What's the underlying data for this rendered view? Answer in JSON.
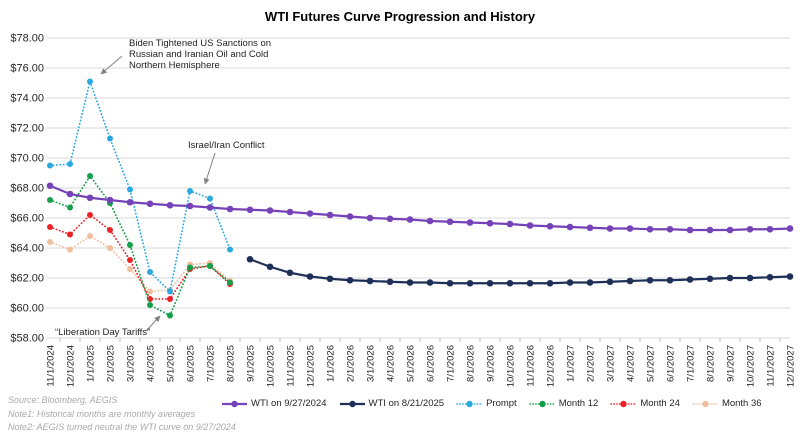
{
  "title": "WTI Futures Curve Progression and History",
  "notes": {
    "source": "Source: Bloomberg, AEGIS",
    "note1": "Note1: Historical months are monthly averages",
    "note2": "Note2: AEGIS turned neutral the WTI curve on 9/27/2024"
  },
  "annotations": {
    "biden_sanctions": "Biden Tightened US Sanctions on\nRussian and Iranian Oil and Cold\nNorthern Hemisphere",
    "israel_iran": "Israel/Iran Conflict",
    "liberation_tariffs": "“Liberation Day Tariffs”"
  },
  "colors": {
    "wti_9_27_2024": "#7642b8",
    "wti_8_21_2025": "#1f3058",
    "prompt": "#2ba8e0",
    "month12": "#13a04a",
    "month24": "#ec2227",
    "month36": "#f0bf9f",
    "gridline": "#d9d9d9",
    "axis_text": "#262626",
    "arrow": "#808080"
  },
  "chart_data": {
    "type": "line",
    "title": "WTI Futures Curve Progression and History",
    "grid": "horizontal",
    "legend_position": "bottom",
    "y_axis": {
      "min": 58,
      "max": 78,
      "step": 2,
      "tick_format": "$#.00"
    },
    "y_tick_labels": [
      "$58.00",
      "$60.00",
      "$62.00",
      "$64.00",
      "$66.00",
      "$68.00",
      "$70.00",
      "$72.00",
      "$74.00",
      "$76.00",
      "$78.00"
    ],
    "x_labels": [
      "11/1/2024",
      "12/1/2024",
      "1/1/2025",
      "2/1/2025",
      "3/1/2025",
      "4/1/2025",
      "5/1/2025",
      "6/1/2025",
      "7/1/2025",
      "8/1/2025",
      "9/1/2025",
      "10/1/2025",
      "11/1/2025",
      "12/1/2025",
      "1/1/2026",
      "2/1/2026",
      "3/1/2026",
      "4/1/2026",
      "5/1/2026",
      "6/1/2026",
      "7/1/2026",
      "8/1/2026",
      "9/1/2026",
      "10/1/2026",
      "11/1/2026",
      "12/1/2026",
      "1/1/2027",
      "2/1/2027",
      "3/1/2027",
      "4/1/2027",
      "5/1/2027",
      "6/1/2027",
      "7/1/2027",
      "8/1/2027",
      "9/1/2027",
      "10/1/2027",
      "11/1/2027",
      "12/1/2027"
    ],
    "series": [
      {
        "name": "Month 36",
        "color_key": "month36",
        "style": "dotted",
        "start": 0,
        "values": [
          64.4,
          63.9,
          64.8,
          64.0,
          62.6,
          61.1,
          61.2,
          62.9,
          63.0,
          61.8
        ]
      },
      {
        "name": "Month 24",
        "color_key": "month24",
        "style": "dotted",
        "start": 0,
        "values": [
          65.4,
          64.9,
          66.2,
          65.2,
          63.2,
          60.6,
          60.6,
          62.6,
          62.8,
          61.6
        ]
      },
      {
        "name": "Month 12",
        "color_key": "month12",
        "style": "dotted",
        "start": 0,
        "values": [
          67.2,
          66.7,
          68.8,
          67.0,
          64.2,
          60.2,
          59.5,
          62.7,
          62.8,
          61.7
        ]
      },
      {
        "name": "Prompt",
        "color_key": "prompt",
        "style": "dotted",
        "start": 0,
        "values": [
          69.5,
          69.6,
          75.1,
          71.3,
          67.9,
          62.4,
          61.1,
          67.8,
          67.3,
          63.9
        ]
      },
      {
        "name": "WTI on 9/27/2024",
        "color_key": "wti_9_27_2024",
        "style": "solid",
        "start": 0,
        "values": [
          68.15,
          67.6,
          67.35,
          67.2,
          67.05,
          66.95,
          66.85,
          66.8,
          66.7,
          66.6,
          66.55,
          66.5,
          66.4,
          66.3,
          66.2,
          66.1,
          66.0,
          65.95,
          65.9,
          65.8,
          65.75,
          65.7,
          65.65,
          65.6,
          65.5,
          65.45,
          65.4,
          65.35,
          65.3,
          65.3,
          65.25,
          65.25,
          65.2,
          65.2,
          65.2,
          65.25,
          65.25,
          65.3
        ]
      },
      {
        "name": "WTI on 8/21/2025",
        "color_key": "wti_8_21_2025",
        "style": "solid",
        "start": 10,
        "values": [
          63.25,
          62.75,
          62.35,
          62.1,
          61.95,
          61.85,
          61.8,
          61.75,
          61.7,
          61.7,
          61.65,
          61.65,
          61.65,
          61.65,
          61.65,
          61.65,
          61.7,
          61.7,
          61.75,
          61.8,
          61.85,
          61.85,
          61.9,
          61.95,
          62.0,
          62.0,
          62.05,
          62.1
        ]
      }
    ],
    "legend_order": [
      "WTI on 9/27/2024",
      "WTI on 8/21/2025",
      "Prompt",
      "Month 12",
      "Month 24",
      "Month 36"
    ]
  }
}
